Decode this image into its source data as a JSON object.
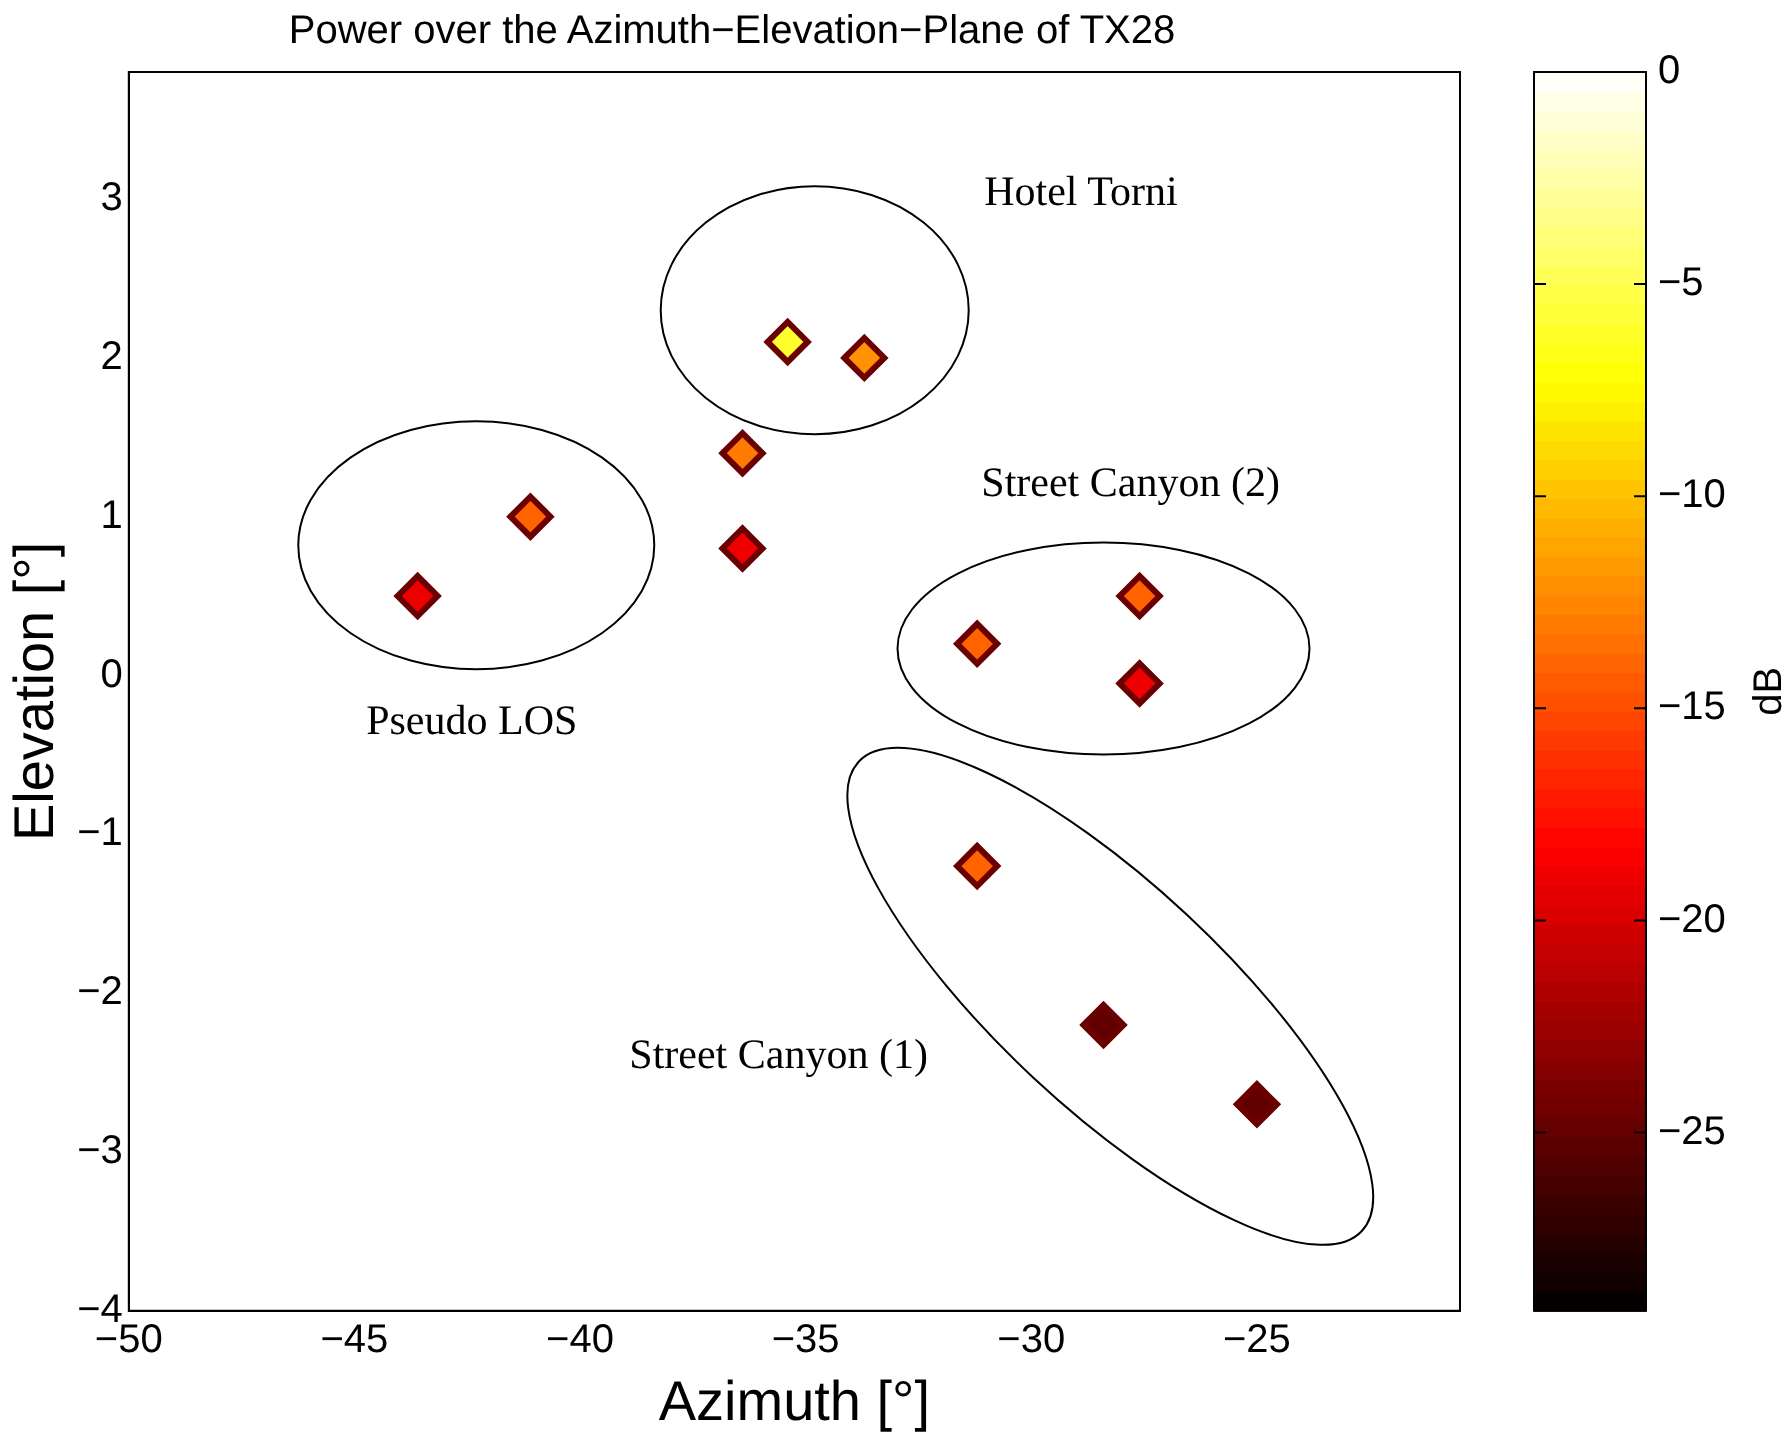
{
  "chart_data": {
    "type": "scatter",
    "title": "Power over the Azimuth−Elevation−Plane of TX28",
    "xlabel": "Azimuth [°]",
    "ylabel": "Elevation [°]",
    "clabel": "dB",
    "x": [
      -35.4,
      -33.7,
      -36.4,
      -36.4,
      -41.1,
      -43.6,
      -31.2,
      -27.6,
      -27.6,
      -31.2,
      -28.4,
      -25
    ],
    "values": [
      2.1,
      2.0,
      1.4,
      0.8,
      1.0,
      0.5,
      0.2,
      0.5,
      -0.05,
      -1.2,
      -2.2,
      -2.7
    ],
    "cvalues": [
      -6,
      -12,
      -13,
      -19,
      -14,
      -19,
      -14,
      -14,
      -19,
      -14,
      -25,
      -25
    ],
    "clim": [
      -29.2,
      0
    ],
    "cticks": [
      -25,
      -20,
      -15,
      -10,
      -5,
      0
    ],
    "xlim": [
      -50,
      -20.5
    ],
    "xticks": [
      -50,
      -45,
      -40,
      -35,
      -30,
      -25
    ],
    "ylim": [
      -4,
      3.8
    ],
    "yticks": [
      -4,
      -3,
      -2,
      -1,
      0,
      1,
      2,
      3
    ],
    "marker": "diamond",
    "grid": false,
    "legend": false,
    "annotations": [
      "Hotel Torni",
      "Street Canyon (2)",
      "Pseudo LOS",
      "Street Canyon (1)"
    ]
  }
}
